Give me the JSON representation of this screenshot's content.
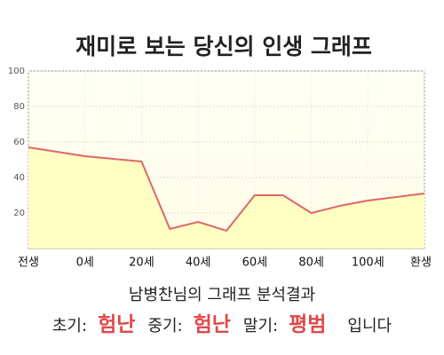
{
  "chart_data": {
    "type": "area",
    "title": "재미로 보는 당신의 인생 그래프",
    "x": [
      -20,
      0,
      20,
      30,
      40,
      50,
      60,
      70,
      80,
      90,
      100,
      110,
      120
    ],
    "values": [
      57,
      52,
      49,
      11,
      15,
      10,
      30,
      30,
      20,
      24,
      27,
      29,
      31
    ],
    "color": "#e06666",
    "fill": "#ffffc4",
    "xlim": [
      -20,
      120
    ],
    "xticks": [
      {
        "value": -20,
        "label": "전생"
      },
      {
        "value": 0,
        "label": "0세"
      },
      {
        "value": 20,
        "label": "20세"
      },
      {
        "value": 40,
        "label": "40세"
      },
      {
        "value": 60,
        "label": "60세"
      },
      {
        "value": 80,
        "label": "80세"
      },
      {
        "value": 100,
        "label": "100세"
      },
      {
        "value": 120,
        "label": "환생"
      }
    ],
    "ylim": [
      0,
      100
    ],
    "yticks": [
      20,
      40,
      60,
      80,
      100
    ],
    "grid": true
  },
  "result": {
    "heading": "남병찬님의 그래프 분석결과",
    "items": [
      {
        "label": "초기:",
        "value": "험난"
      },
      {
        "label": "중기:",
        "value": "험난"
      },
      {
        "label": "말기:",
        "value": "평범"
      }
    ],
    "suffix": "입니다"
  }
}
